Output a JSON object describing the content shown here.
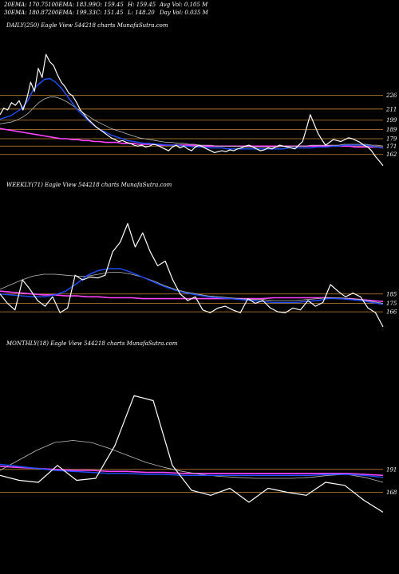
{
  "header": {
    "ema20": "20EMA: 170.75",
    "ema100": "100EMA: 183.99",
    "open": "O: 159.45",
    "high": "H: 159.45",
    "avg_vol": "Avg Vol: 0.105 M",
    "ema30": "30EMA: 180.87",
    "ema200": "200EMA: 199.33",
    "close": "C: 151.45",
    "low": "L: 148.20",
    "day_vol": "Day Vol: 0.035 M"
  },
  "panels": {
    "daily": "DAILY(250) Eagle   View  544218 charts MunafaSutra.com",
    "weekly": "WEEKLY(71) Eagle   View  544218 charts MunafaSutra.com",
    "monthly": "MONTHLY(18) Eagle   View  544218 charts MunafaSutra.com"
  },
  "colors": {
    "background": "#000000",
    "price": "#ffffff",
    "ema_blue": "#1f4fff",
    "ema_pink": "#ff44ff",
    "level_line": "#c88a3a",
    "ema_grey": "#bbbbbb"
  },
  "chart_data": [
    {
      "type": "line",
      "name": "daily",
      "ylim": [
        148,
        290
      ],
      "levels": [
        226,
        211,
        199,
        189,
        179,
        171,
        162
      ],
      "level_labels": [
        "226",
        "211",
        "199",
        "189",
        "179",
        "171",
        "162"
      ],
      "price": [
        205,
        212,
        210,
        218,
        215,
        220,
        210,
        222,
        240,
        230,
        255,
        245,
        270,
        262,
        258,
        248,
        240,
        235,
        228,
        225,
        218,
        210,
        205,
        200,
        196,
        192,
        189,
        186,
        183,
        180,
        178,
        176,
        177,
        175,
        174,
        172,
        171,
        172,
        170,
        171,
        173,
        172,
        170,
        168,
        166,
        170,
        172,
        169,
        171,
        168,
        166,
        170,
        172,
        170,
        168,
        166,
        164,
        165,
        166,
        165,
        167,
        166,
        168,
        169,
        171,
        172,
        170,
        168,
        166,
        167,
        169,
        168,
        170,
        172,
        171,
        170,
        169,
        168,
        172,
        176,
        190,
        205,
        195,
        185,
        178,
        172,
        175,
        178,
        177,
        176,
        178,
        180,
        179,
        177,
        175,
        172,
        170,
        166,
        160,
        155,
        150
      ],
      "ema_blue": [
        200,
        202,
        204,
        208,
        212,
        220,
        232,
        238,
        243,
        244,
        240,
        234,
        226,
        218,
        210,
        204,
        198,
        193,
        189,
        186,
        183,
        181,
        179,
        177,
        176,
        175,
        174,
        174,
        173,
        173,
        172,
        172,
        172,
        171,
        171,
        170,
        170,
        170,
        169,
        169,
        169,
        168,
        168,
        168,
        168,
        168,
        168,
        168,
        168,
        168,
        168,
        168,
        169,
        169,
        169,
        169,
        169,
        170,
        170,
        170,
        171,
        171,
        172,
        172,
        172,
        172,
        172,
        171,
        170,
        169
      ],
      "ema_grey": [
        195,
        196,
        197,
        199,
        202,
        206,
        212,
        218,
        222,
        224,
        224,
        222,
        219,
        215,
        211,
        207,
        203,
        199,
        196,
        193,
        190,
        188,
        186,
        184,
        182,
        180,
        179,
        178,
        177,
        176,
        175,
        175,
        174,
        174,
        173,
        173,
        172,
        172,
        172,
        171,
        171,
        171,
        171,
        171,
        170,
        170,
        170,
        170,
        170,
        170,
        170,
        171,
        171,
        171,
        171,
        171,
        172,
        172,
        172,
        172,
        172,
        172,
        173,
        173,
        173,
        173,
        173,
        172,
        172,
        171
      ],
      "ema_pink": [
        190,
        189,
        188,
        187,
        186,
        185,
        184,
        183,
        182,
        181,
        180,
        179,
        179,
        178,
        178,
        177,
        177,
        176,
        176,
        175,
        175,
        175,
        174,
        174,
        174,
        173,
        173,
        173,
        173,
        172,
        172,
        172,
        172,
        172,
        172,
        172,
        171,
        171,
        171,
        171,
        171,
        171,
        171,
        171,
        171,
        171,
        171,
        171,
        171,
        171,
        171,
        171,
        171,
        171,
        171,
        171,
        171,
        171,
        171,
        171,
        171,
        171,
        171,
        171,
        170,
        170,
        170,
        170,
        170,
        169
      ]
    },
    {
      "type": "line",
      "name": "weekly",
      "ylim": [
        150,
        290
      ],
      "levels": [
        185,
        175,
        166
      ],
      "level_labels": [
        "185",
        "175",
        "166"
      ],
      "price": [
        185,
        175,
        168,
        200,
        190,
        178,
        172,
        182,
        165,
        170,
        205,
        200,
        203,
        202,
        205,
        230,
        240,
        260,
        235,
        250,
        230,
        215,
        220,
        200,
        185,
        178,
        182,
        168,
        165,
        170,
        172,
        168,
        165,
        180,
        175,
        178,
        170,
        166,
        165,
        170,
        168,
        178,
        172,
        176,
        195,
        188,
        182,
        186,
        182,
        170,
        165,
        150
      ],
      "ema_blue": [
        185,
        184,
        183,
        182,
        182,
        184,
        188,
        196,
        205,
        210,
        212,
        212,
        208,
        203,
        198,
        193,
        189,
        186,
        184,
        182,
        181,
        180,
        179,
        178,
        177,
        176,
        176,
        176,
        177,
        178,
        180,
        180,
        179,
        178,
        176,
        174
      ],
      "ema_grey": [
        190,
        195,
        200,
        204,
        206,
        206,
        205,
        204,
        204,
        206,
        208,
        208,
        206,
        203,
        199,
        194,
        190,
        187,
        185,
        183,
        182,
        181,
        180,
        179,
        179,
        178,
        178,
        178,
        179,
        180,
        181,
        181,
        180,
        179,
        177,
        175
      ],
      "ema_pink": [
        188,
        187,
        186,
        185,
        184,
        184,
        183,
        183,
        182,
        182,
        181,
        181,
        181,
        180,
        180,
        180,
        180,
        180,
        180,
        180,
        180,
        180,
        180,
        180,
        180,
        181,
        181,
        181,
        181,
        181,
        181,
        180,
        180,
        179,
        178,
        177
      ]
    },
    {
      "type": "line",
      "name": "monthly",
      "ylim": [
        150,
        310
      ],
      "levels": [
        191,
        168
      ],
      "level_labels": [
        "191",
        "168"
      ],
      "price": [
        185,
        180,
        178,
        195,
        180,
        182,
        215,
        265,
        260,
        195,
        170,
        165,
        172,
        158,
        172,
        168,
        165,
        178,
        175,
        160,
        148
      ],
      "ema_blue": [
        196,
        194,
        192,
        190,
        189,
        188,
        187,
        187,
        186,
        186,
        185,
        185,
        185,
        185,
        185,
        185,
        185,
        185,
        186,
        186,
        185,
        183
      ],
      "ema_grey": [
        190,
        200,
        210,
        218,
        220,
        218,
        212,
        205,
        198,
        193,
        189,
        186,
        184,
        183,
        182,
        182,
        182,
        183,
        185,
        186,
        183,
        178
      ],
      "ema_pink": [
        194,
        193,
        192,
        191,
        190,
        190,
        189,
        189,
        188,
        188,
        187,
        187,
        187,
        187,
        187,
        187,
        187,
        187,
        187,
        187,
        186,
        185
      ]
    }
  ]
}
